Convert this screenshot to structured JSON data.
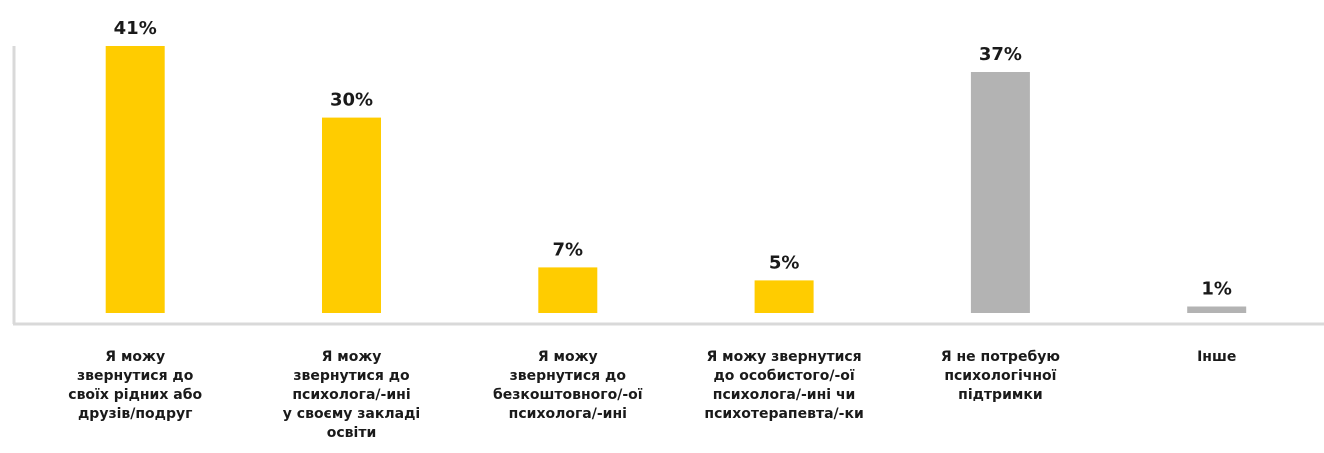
{
  "chart_data": {
    "type": "bar",
    "categories": [
      [
        "Я можу",
        "звернутися до",
        "своїх рідних або",
        "друзів/подруг"
      ],
      [
        "Я можу",
        "звернутися до",
        "психолога/-ині",
        "у своєму закладі",
        "освіти"
      ],
      [
        "Я можу",
        "звернутися до",
        "безкоштовного/-ої",
        "психолога/-ині"
      ],
      [
        "Я можу звернутися",
        "до особистого/-ої",
        "психолога/-ині чи",
        "психотерапевта/-ки"
      ],
      [
        "Я не потребую",
        "психологічної",
        "підтримки"
      ],
      [
        "Інше"
      ]
    ],
    "values": [
      41,
      30,
      7,
      5,
      37,
      1
    ],
    "value_labels": [
      "41%",
      "30%",
      "7%",
      "5%",
      "37%",
      "1%"
    ],
    "colors": [
      "#FFCC00",
      "#FFCC00",
      "#FFCC00",
      "#FFCC00",
      "#B3B3B3",
      "#B3B3B3"
    ],
    "axis_color": "#D9D9D9",
    "ylim": [
      0,
      41
    ],
    "grid": false,
    "legend": "none",
    "title": "",
    "xlabel": "",
    "ylabel": ""
  }
}
